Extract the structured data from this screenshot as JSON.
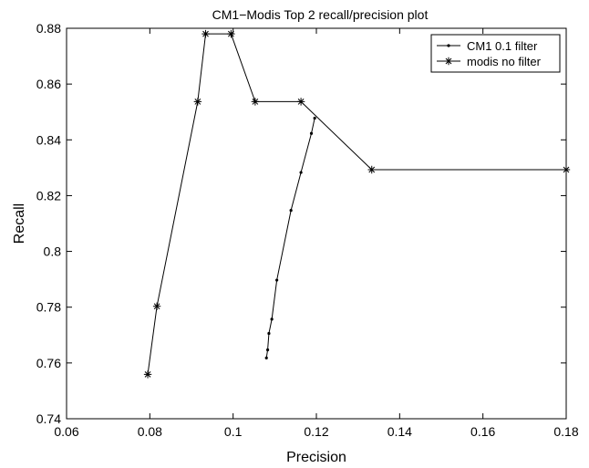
{
  "chart_data": {
    "type": "line",
    "title": "CM1−Modis Top 2 recall/precision plot",
    "xlabel": "Precision",
    "ylabel": "Recall",
    "xlim": [
      0.06,
      0.18
    ],
    "ylim": [
      0.74,
      0.88
    ],
    "xticks": [
      0.06,
      0.08,
      0.1,
      0.12,
      0.14,
      0.16,
      0.18
    ],
    "xtick_labels": [
      "0.06",
      "0.08",
      "0.1",
      "0.12",
      "0.14",
      "0.16",
      "0.18"
    ],
    "yticks": [
      0.74,
      0.76,
      0.78,
      0.8,
      0.82,
      0.84,
      0.86,
      0.88
    ],
    "ytick_labels": [
      "0.74",
      "0.76",
      "0.78",
      "0.8",
      "0.82",
      "0.84",
      "0.86",
      "0.88"
    ],
    "grid": false,
    "legend_position": "top-right",
    "colors": {
      "line": "#000000",
      "background": "#ffffff"
    },
    "series": [
      {
        "name": "CM1 0.1 filter",
        "marker": "dot",
        "x": [
          0.108,
          0.1083,
          0.1086,
          0.1093,
          0.1105,
          0.1139,
          0.1163,
          0.1188,
          0.1196
        ],
        "y": [
          0.7618,
          0.7647,
          0.7706,
          0.7757,
          0.7897,
          0.8147,
          0.8283,
          0.8423,
          0.8478
        ]
      },
      {
        "name": "modis no filter",
        "marker": "asterisk",
        "x": [
          0.0795,
          0.0817,
          0.0915,
          0.0934,
          0.0995,
          0.1053,
          0.1163,
          0.1333,
          0.18
        ],
        "y": [
          0.7559,
          0.7803,
          0.8537,
          0.878,
          0.878,
          0.8537,
          0.8537,
          0.8293,
          0.8293
        ]
      }
    ]
  }
}
